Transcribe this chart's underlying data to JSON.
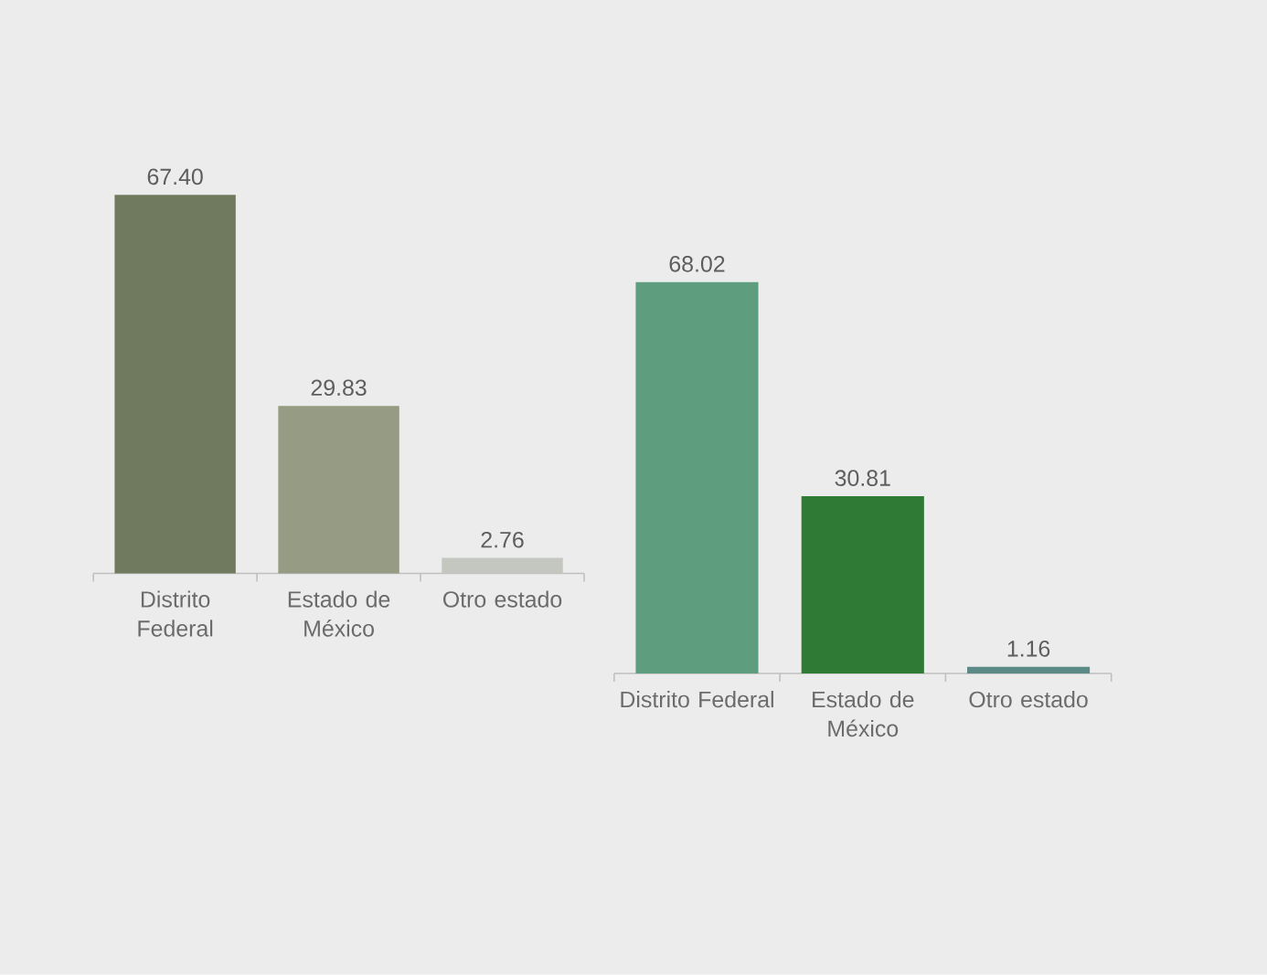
{
  "chart_data": [
    {
      "type": "bar",
      "categories": [
        "Distrito Federal",
        "Estado de México",
        "Otro estado"
      ],
      "values": [
        67.4,
        29.83,
        2.76
      ],
      "value_labels": [
        "67.40",
        "29.83",
        "2.76"
      ],
      "colors": [
        "#6f7a5e",
        "#959c83",
        "#c4c6c0"
      ]
    },
    {
      "type": "bar",
      "categories": [
        "Distrito Federal",
        "Estado de México",
        "Otro estado"
      ],
      "values": [
        68.02,
        30.81,
        1.16
      ],
      "value_labels": [
        "68.02",
        "30.81",
        "1.16"
      ],
      "colors": [
        "#5e9e7e",
        "#2f7a35",
        "#5b8a86"
      ]
    }
  ]
}
